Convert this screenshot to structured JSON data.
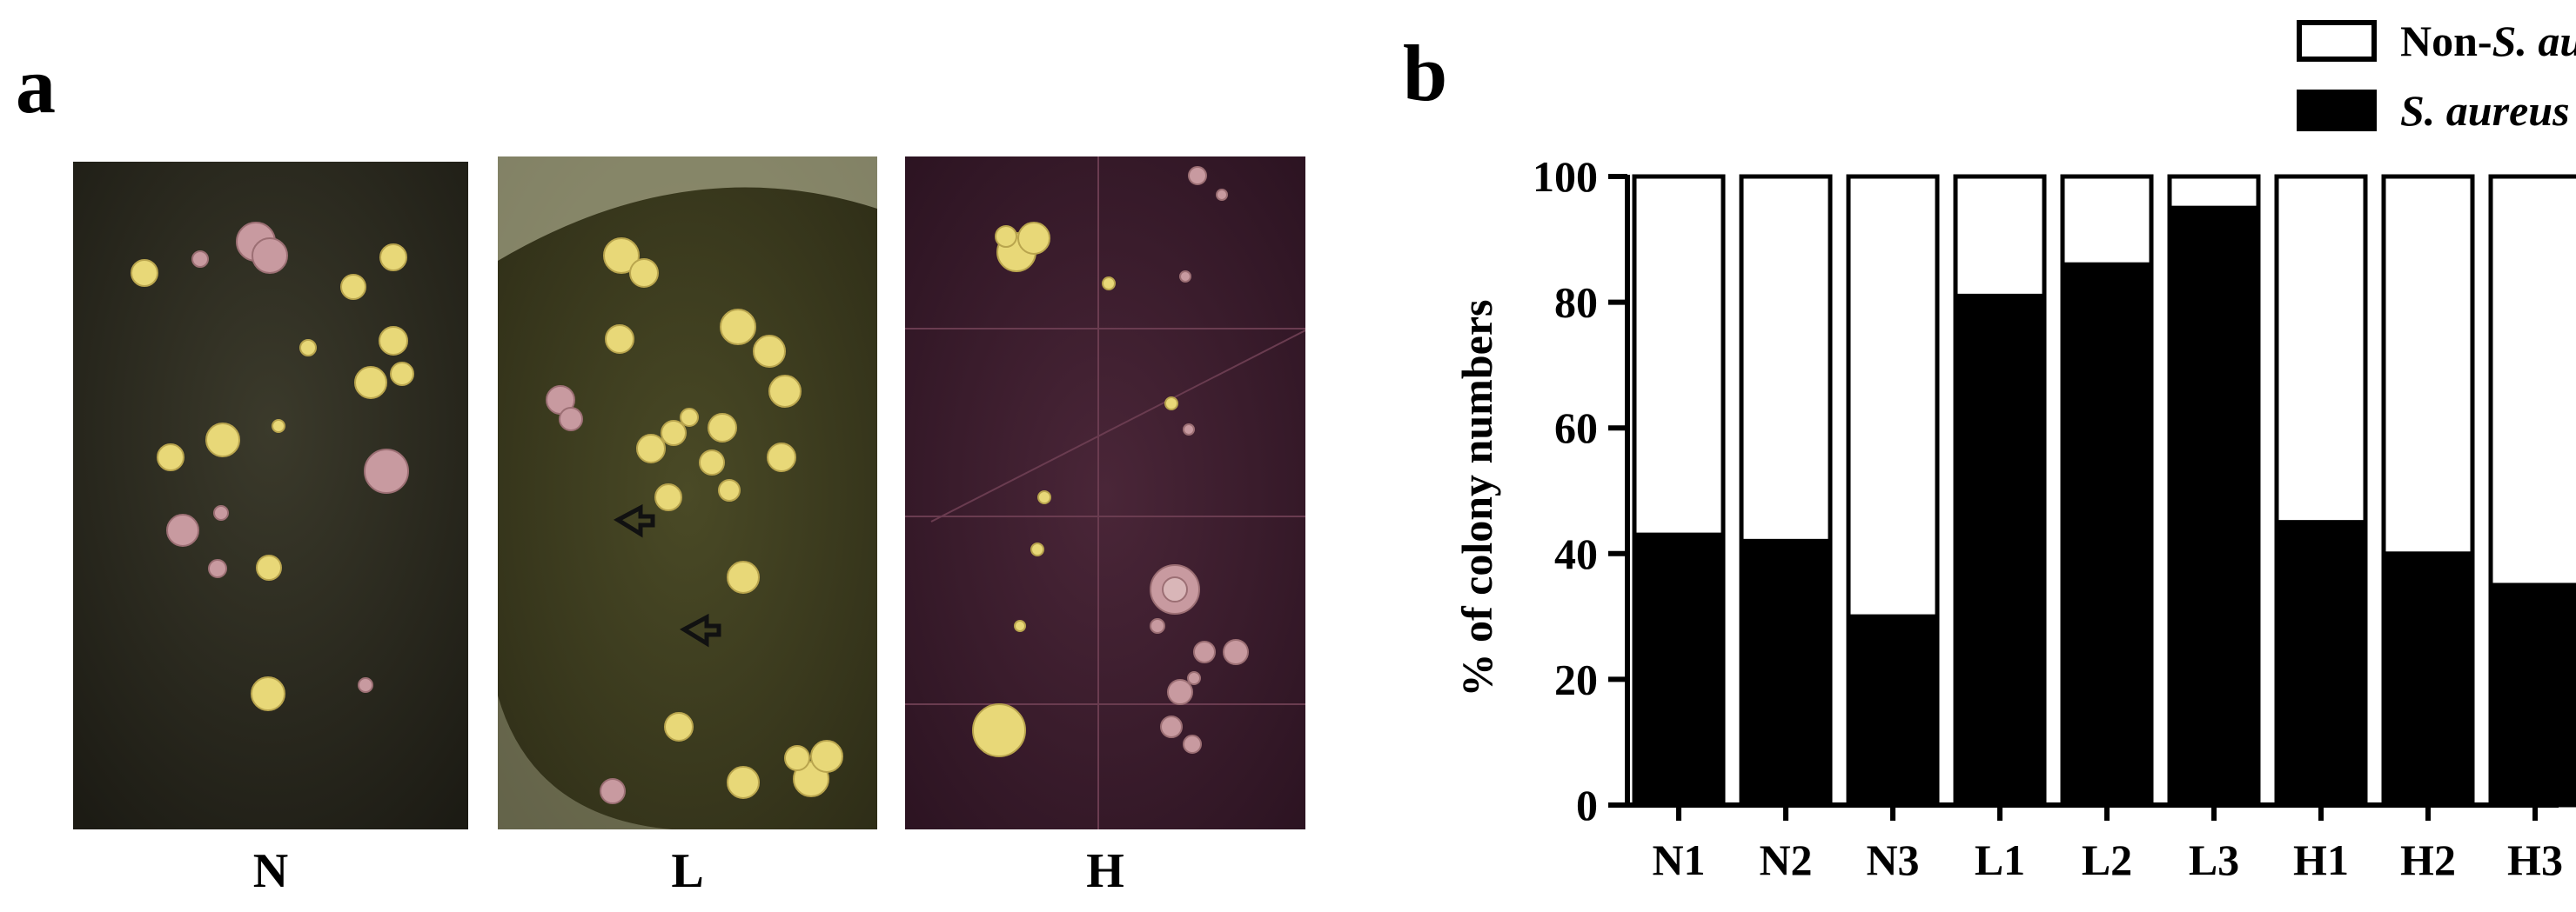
{
  "figure": {
    "panel_a_label": "a",
    "panel_b_label": "b",
    "plates": [
      {
        "label": "N",
        "background": "#2a2a1e"
      },
      {
        "label": "L",
        "background": "#3c3b1f"
      },
      {
        "label": "H",
        "background": "#3a1c2c"
      }
    ],
    "colony_colors": {
      "yellow": "#e8d878",
      "pink": "#c89aa0"
    }
  },
  "chart_data": {
    "type": "bar",
    "stacked": true,
    "categories": [
      "N1",
      "N2",
      "N3",
      "L1",
      "L2",
      "L3",
      "H1",
      "H2",
      "H3"
    ],
    "series": [
      {
        "name": "S. aureus",
        "color": "#000000",
        "values": [
          43,
          42,
          30,
          81,
          86,
          95,
          45,
          40,
          35
        ]
      },
      {
        "name": "Non-S. aureus",
        "color": "#ffffff",
        "values": [
          57,
          58,
          70,
          19,
          14,
          5,
          55,
          60,
          65
        ]
      }
    ],
    "legend": [
      {
        "prefix": "Non-",
        "italic": "S. aureus",
        "swatch": "#ffffff"
      },
      {
        "prefix": "",
        "italic": "S. aureus",
        "swatch": "#000000"
      }
    ],
    "legend_position": "top-right",
    "ylabel": "% of colony numbers",
    "xlabel": "",
    "ylim": [
      0,
      100
    ],
    "yticks": [
      0,
      20,
      40,
      60,
      80,
      100
    ],
    "grid": false
  }
}
